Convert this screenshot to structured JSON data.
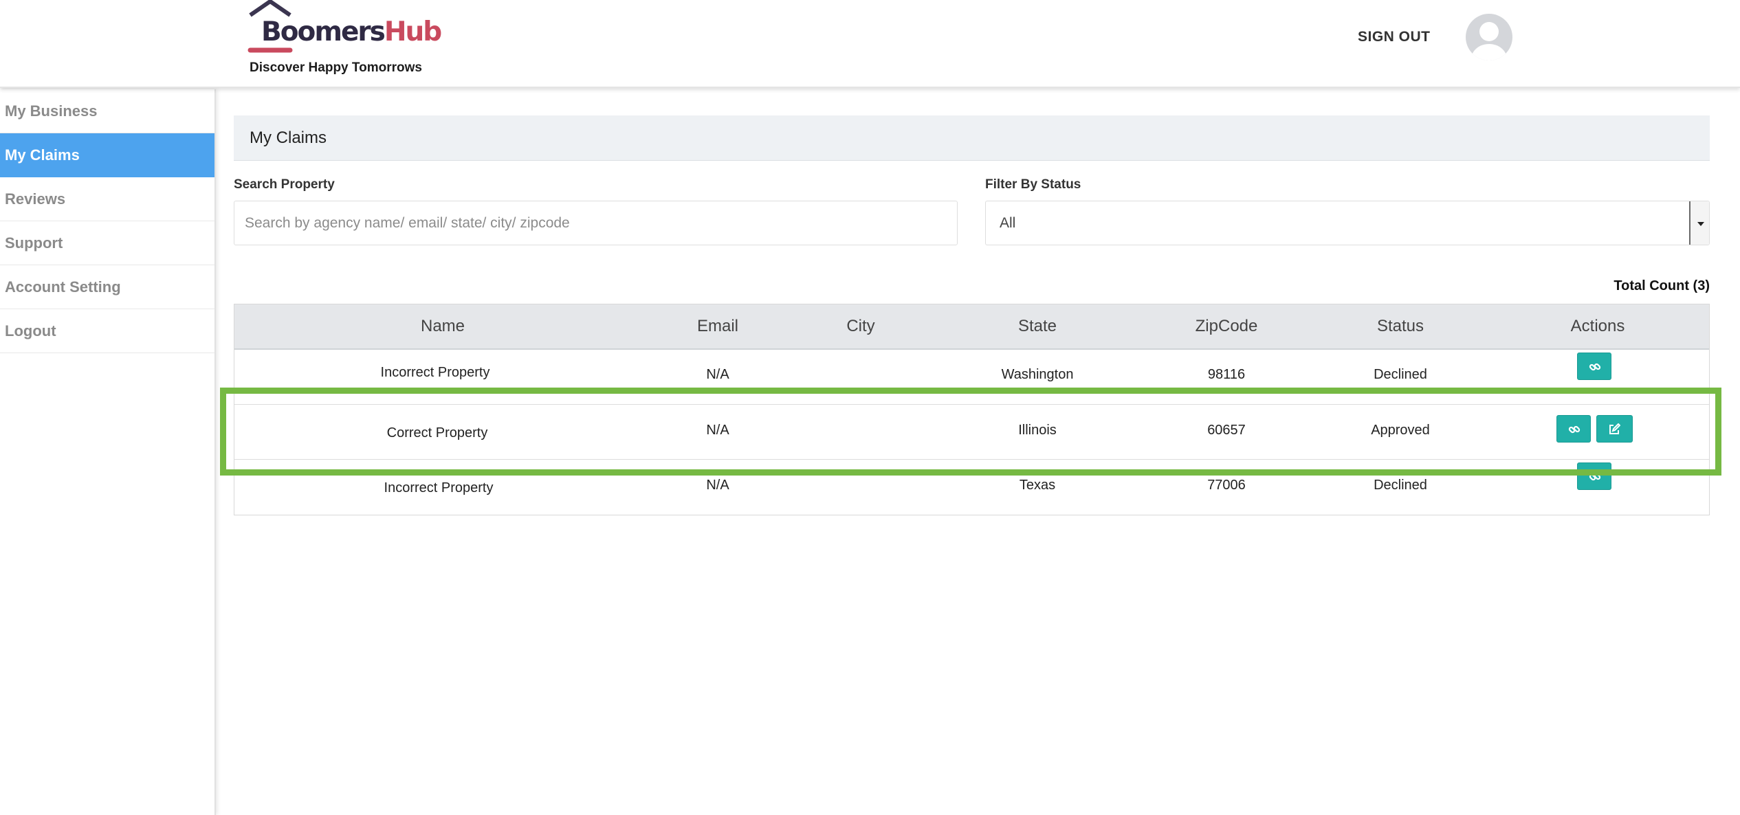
{
  "header": {
    "logo_text_main": "Boomers",
    "logo_text_accent": "Hub",
    "tagline": "Discover Happy Tomorrows",
    "sign_out": "SIGN OUT"
  },
  "sidebar": {
    "items": [
      {
        "label": "My Business",
        "active": false
      },
      {
        "label": "My Claims",
        "active": true
      },
      {
        "label": "Reviews",
        "active": false
      },
      {
        "label": "Support",
        "active": false
      },
      {
        "label": "Account Setting",
        "active": false
      },
      {
        "label": "Logout",
        "active": false
      }
    ]
  },
  "main": {
    "title": "My Claims",
    "search_label": "Search Property",
    "search_placeholder": "Search by agency name/ email/ state/ city/ zipcode",
    "search_value": "",
    "filter_label": "Filter By Status",
    "filter_value": "All",
    "total_count": "Total Count (3)"
  },
  "table": {
    "columns": [
      "Name",
      "Email",
      "City",
      "State",
      "ZipCode",
      "Status",
      "Actions"
    ],
    "rows": [
      {
        "name": "Incorrect Property",
        "email": "N/A",
        "city": "",
        "state": "Washington",
        "zipcode": "98116",
        "status": "Declined",
        "actions": [
          "link-icon"
        ]
      },
      {
        "name": "Correct Property",
        "email": "N/A",
        "city": "",
        "state": "Illinois",
        "zipcode": "60657",
        "status": "Approved",
        "actions": [
          "link-icon",
          "edit-icon"
        ]
      },
      {
        "name": "Incorrect Property",
        "email": "N/A",
        "city": "",
        "state": "Texas",
        "zipcode": "77006",
        "status": "Declined",
        "actions": [
          "link-icon"
        ]
      }
    ]
  },
  "colors": {
    "nav_active": "#4da3ee",
    "action_button": "#21b0a8",
    "highlight_box": "#76b943",
    "logo_dark": "#2f2a44",
    "logo_accent": "#c94a5e"
  }
}
